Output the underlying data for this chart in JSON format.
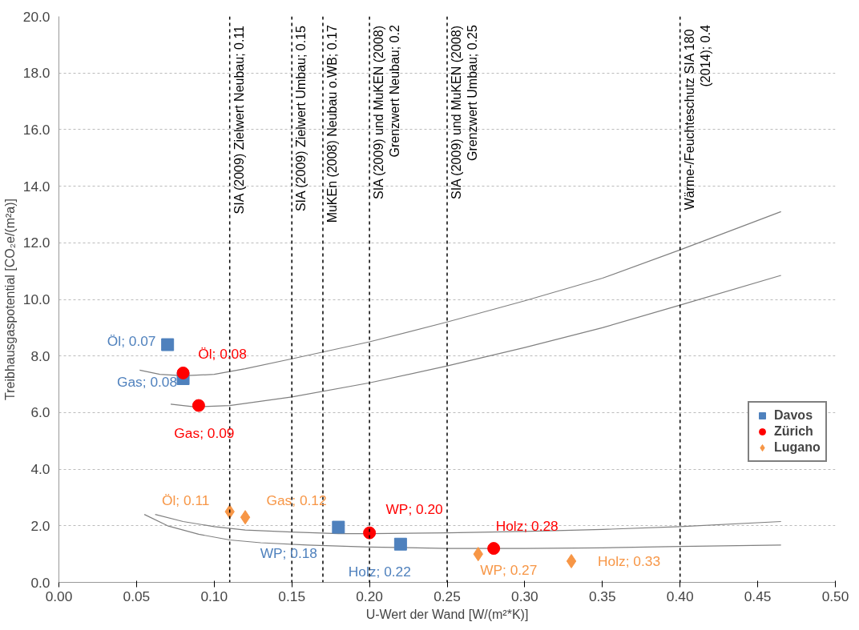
{
  "chart_data": {
    "type": "scatter",
    "xlabel": "U-Wert der Wand [W/(m²*K)]",
    "ylabel": "Treibhausgaspotential [CO₂e/(m²a)]",
    "xlim": [
      0,
      0.5
    ],
    "ylim": [
      0,
      20
    ],
    "xticks": [
      {
        "value": 0,
        "label": "0.00"
      },
      {
        "value": 0.05,
        "label": "0.05"
      },
      {
        "value": 0.1,
        "label": "0.10"
      },
      {
        "value": 0.15,
        "label": "0.15"
      },
      {
        "value": 0.2,
        "label": "0.20"
      },
      {
        "value": 0.25,
        "label": "0.25"
      },
      {
        "value": 0.3,
        "label": "0.30"
      },
      {
        "value": 0.35,
        "label": "0.35"
      },
      {
        "value": 0.4,
        "label": "0.40"
      },
      {
        "value": 0.45,
        "label": "0.45"
      },
      {
        "value": 0.5,
        "label": "0.50"
      }
    ],
    "yticks": [
      {
        "value": 0,
        "label": "0.0"
      },
      {
        "value": 2,
        "label": "2.0"
      },
      {
        "value": 4,
        "label": "4.0"
      },
      {
        "value": 6,
        "label": "6.0"
      },
      {
        "value": 8,
        "label": "8.0"
      },
      {
        "value": 10,
        "label": "10.0"
      },
      {
        "value": 12,
        "label": "12.0"
      },
      {
        "value": 14,
        "label": "14.0"
      },
      {
        "value": 16,
        "label": "16.0"
      },
      {
        "value": 18,
        "label": "18.0"
      },
      {
        "value": 20,
        "label": "20.0"
      }
    ],
    "grid": "y",
    "legend": "right",
    "series": [
      {
        "type": "line",
        "color": "#808080",
        "x": [
          0.052,
          0.065,
          0.08,
          0.1,
          0.12,
          0.15,
          0.2,
          0.25,
          0.3,
          0.35,
          0.4,
          0.465
        ],
        "values": [
          7.5,
          7.35,
          7.3,
          7.35,
          7.55,
          7.9,
          8.5,
          9.2,
          9.95,
          10.75,
          11.75,
          13.1
        ]
      },
      {
        "type": "line",
        "color": "#808080",
        "x": [
          0.072,
          0.088,
          0.11,
          0.15,
          0.2,
          0.25,
          0.3,
          0.35,
          0.4,
          0.465
        ],
        "values": [
          6.3,
          6.2,
          6.25,
          6.55,
          7.05,
          7.65,
          8.3,
          9.0,
          9.8,
          10.85
        ]
      },
      {
        "type": "line",
        "color": "#808080",
        "x": [
          0.062,
          0.08,
          0.1,
          0.12,
          0.15,
          0.18,
          0.2,
          0.25,
          0.3,
          0.35,
          0.4,
          0.465
        ],
        "values": [
          2.4,
          2.15,
          1.97,
          1.85,
          1.78,
          1.72,
          1.72,
          1.75,
          1.8,
          1.87,
          1.97,
          2.15
        ]
      },
      {
        "type": "line",
        "color": "#808080",
        "x": [
          0.055,
          0.07,
          0.09,
          0.11,
          0.13,
          0.16,
          0.2,
          0.25,
          0.3,
          0.35,
          0.4,
          0.465
        ],
        "values": [
          2.4,
          2.0,
          1.7,
          1.5,
          1.4,
          1.32,
          1.25,
          1.2,
          1.2,
          1.22,
          1.27,
          1.32
        ]
      },
      {
        "name": "Davos",
        "color": "#4f81bd",
        "marker": "square",
        "x": [
          0.07,
          0.08,
          0.18,
          0.22
        ],
        "values": [
          8.4,
          7.2,
          1.95,
          1.35
        ]
      },
      {
        "name": "Zürich",
        "color": "#ff0000",
        "marker": "circle",
        "x": [
          0.08,
          0.09,
          0.2,
          0.28
        ],
        "values": [
          7.4,
          6.25,
          1.75,
          1.2
        ]
      },
      {
        "name": "Lugano",
        "color": "#f79646",
        "marker": "diamond",
        "x": [
          0.11,
          0.12,
          0.27,
          0.33
        ],
        "values": [
          2.5,
          2.3,
          1.0,
          0.75
        ]
      }
    ],
    "annotations": [
      {
        "text": "Öl; 0.07",
        "x": 0.07,
        "y": 8.4
      },
      {
        "text": "Gas; 0.08",
        "x": 0.08,
        "y": 7.2
      },
      {
        "text": "WP; 0.18",
        "x": 0.18,
        "y": 1.95
      },
      {
        "text": "Holz; 0.22",
        "x": 0.22,
        "y": 1.35
      },
      {
        "text": "Öl; 0.08",
        "x": 0.08,
        "y": 7.4
      },
      {
        "text": "Gas; 0.09",
        "x": 0.09,
        "y": 6.25
      },
      {
        "text": "WP; 0.20",
        "x": 0.2,
        "y": 1.75
      },
      {
        "text": "Holz;  0.28",
        "x": 0.28,
        "y": 1.2
      },
      {
        "text": "Öl; 0.11",
        "x": 0.11,
        "y": 2.5
      },
      {
        "text": "Gas; 0.12",
        "x": 0.12,
        "y": 2.3
      },
      {
        "text": "WP; 0.27",
        "x": 0.27,
        "y": 1.0
      },
      {
        "text": "Holz; 0.33",
        "x": 0.33,
        "y": 0.75
      }
    ],
    "ref_lines": [
      {
        "axis": "x",
        "value": 0.11,
        "label": "SIA (2009) Zielwert Neubau; 0.11",
        "color": "#000000",
        "line_style": "dashed"
      },
      {
        "axis": "x",
        "value": 0.15,
        "label": "SIA (2009) Zielwert Umbau; 0.15",
        "color": "#000000",
        "line_style": "dashed"
      },
      {
        "axis": "x",
        "value": 0.17,
        "label": "MuKEn (2008) Neubau o.WB; 0.17",
        "color": "#000000",
        "line_style": "dashed"
      },
      {
        "axis": "x",
        "value": 0.2,
        "label": "SIA (2009) und MuKEN (2008)\nGrenzwert Neubau; 0.2",
        "color": "#000000",
        "line_style": "dashed"
      },
      {
        "axis": "x",
        "value": 0.25,
        "label": "SIA (2009) und MuKEN (2008)\nGrenzwert Umbau; 0.25",
        "color": "#000000",
        "line_style": "dashed"
      },
      {
        "axis": "x",
        "value": 0.4,
        "label": "Wärme-/Feuchteschutz  SIA 180\n(2014); 0.4",
        "color": "#000000",
        "line_style": "dashed"
      }
    ]
  }
}
